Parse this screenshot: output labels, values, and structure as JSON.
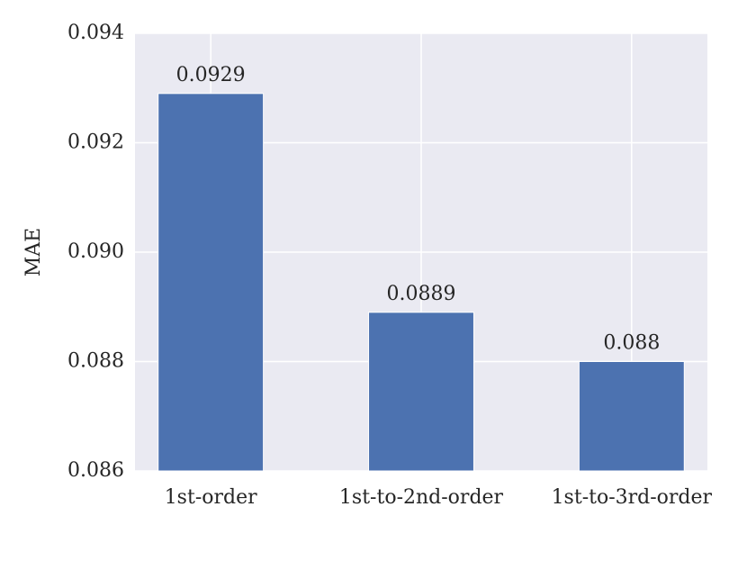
{
  "chart_data": {
    "type": "bar",
    "y_label": "MAE",
    "categories": [
      "1st-order",
      "1st-to-2nd-order",
      "1st-to-3rd-order"
    ],
    "values": [
      0.0929,
      0.0889,
      0.088
    ],
    "color": "#4c72b0",
    "ylim": [
      0.086,
      0.094
    ],
    "yticks": [
      0.086,
      0.088,
      {
        "value": 0.09,
        "label": "0.090"
      },
      0.092,
      0.094
    ],
    "grid": true
  }
}
